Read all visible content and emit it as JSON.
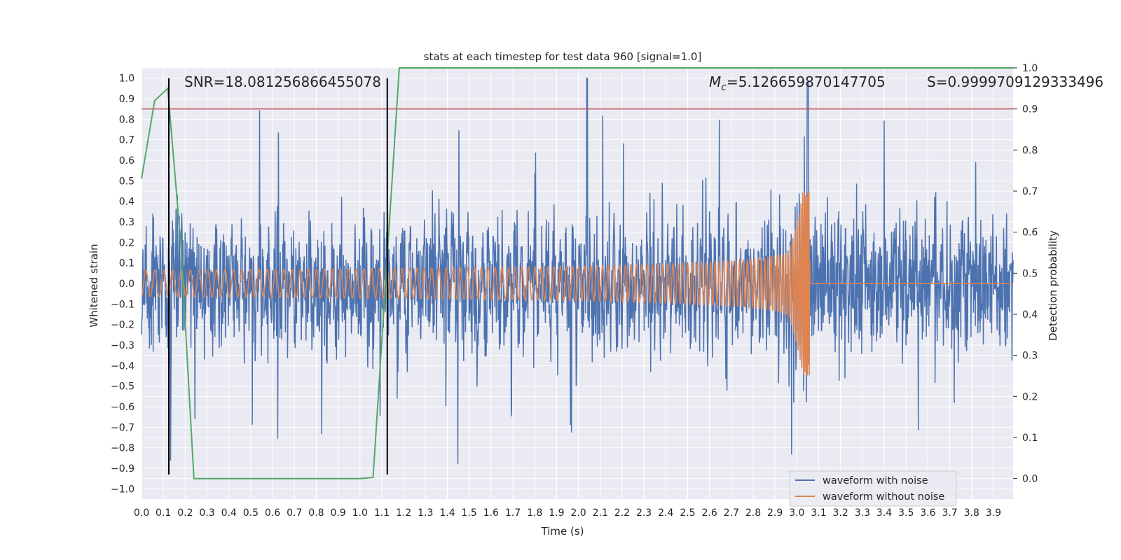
{
  "chart_data": {
    "type": "line",
    "title": "stats at each timestep for test data 960 [signal=1.0]",
    "xlabel": "Time (s)",
    "ylabel": "Whitened strain",
    "ylabel_right": "Detection probability",
    "xlim": [
      0.0,
      3.99
    ],
    "ylim": [
      -1.05,
      1.05
    ],
    "ylim_right": [
      -0.05,
      1.0
    ],
    "x_ticks": [
      "0.0",
      "0.1",
      "0.2",
      "0.3",
      "0.4",
      "0.5",
      "0.6",
      "0.7",
      "0.8",
      "0.9",
      "1.0",
      "1.1",
      "1.2",
      "1.3",
      "1.4",
      "1.5",
      "1.6",
      "1.7",
      "1.8",
      "1.9",
      "2.0",
      "2.1",
      "2.2",
      "2.3",
      "2.4",
      "2.5",
      "2.6",
      "2.7",
      "2.8",
      "2.9",
      "3.0",
      "3.1",
      "3.2",
      "3.3",
      "3.4",
      "3.5",
      "3.6",
      "3.7",
      "3.8",
      "3.9"
    ],
    "y_ticks": [
      "1.0",
      "0.9",
      "0.8",
      "0.7",
      "0.6",
      "0.5",
      "0.4",
      "0.3",
      "0.2",
      "0.1",
      "0.0",
      "−0.1",
      "−0.2",
      "−0.3",
      "−0.4",
      "−0.5",
      "−0.6",
      "−0.7",
      "−0.8",
      "−0.9",
      "−1.0"
    ],
    "y_ticks_right": [
      "1.0",
      "0.9",
      "0.8",
      "0.7",
      "0.6",
      "0.5",
      "0.4",
      "0.3",
      "0.2",
      "0.1",
      "0.0"
    ],
    "grid": true,
    "legend_position": "bottom-right",
    "series": [
      {
        "name": "waveform with noise",
        "color": "#4c72b0",
        "axis": "left",
        "description": "noisy whitened strain, amplitude mostly within ±0.6 with spikes to ±1.0"
      },
      {
        "name": "waveform without noise",
        "color": "#dd8452",
        "axis": "left",
        "description": "chirp signal growing from amplitude ~0.06 to ~0.45, merger at t~3.06 s then zero"
      }
    ],
    "detection_probability": {
      "color": "#55a868",
      "axis": "right",
      "x": [
        0.0,
        0.06,
        0.12,
        0.18,
        0.24,
        0.3,
        0.4,
        0.6,
        0.8,
        1.0,
        1.06,
        1.12,
        1.18,
        1.5,
        2.0,
        2.5,
        3.0,
        3.5,
        3.99
      ],
      "y": [
        0.73,
        0.92,
        0.95,
        0.57,
        0.0,
        0.0,
        0.0,
        0.0,
        0.0,
        0.0,
        0.003,
        0.5,
        1.0,
        1.0,
        1.0,
        1.0,
        1.0,
        1.0,
        1.0
      ]
    },
    "threshold": {
      "value": 0.9,
      "axis": "right",
      "color": "#c44e52"
    },
    "vertical_markers": [
      {
        "x": 0.125,
        "color": "#000000"
      },
      {
        "x": 1.125,
        "color": "#000000"
      }
    ],
    "annotations": {
      "snr": "SNR=18.081256866455078",
      "mc_symbol": "M",
      "mc_subscript": "c",
      "mc_value": "=5.126659870147705",
      "s": "S=0.9999709129333496"
    },
    "merger_time": 3.06
  },
  "colors": {
    "plot_background": "#eaeaf2",
    "grid": "#ffffff",
    "text": "#262626"
  }
}
